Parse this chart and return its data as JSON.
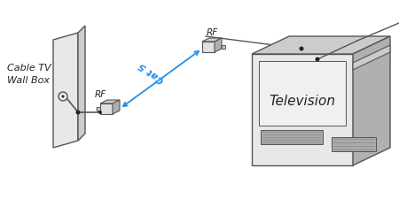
{
  "bg_color": "#ffffff",
  "line_color": "#555555",
  "blue_color": "#2090ee",
  "dark_color": "#222222",
  "wall_box_label": "Cable TV\nWall Box",
  "rf_label": "RF",
  "cat5_label": "Cat 5",
  "tv_label": "Television",
  "figsize": [
    4.5,
    2.26
  ],
  "dpi": 100,
  "gray_face": "#e8e8e8",
  "gray_side": "#cccccc",
  "gray_dark": "#b0b0b0",
  "gray_grille": "#aaaaaa"
}
